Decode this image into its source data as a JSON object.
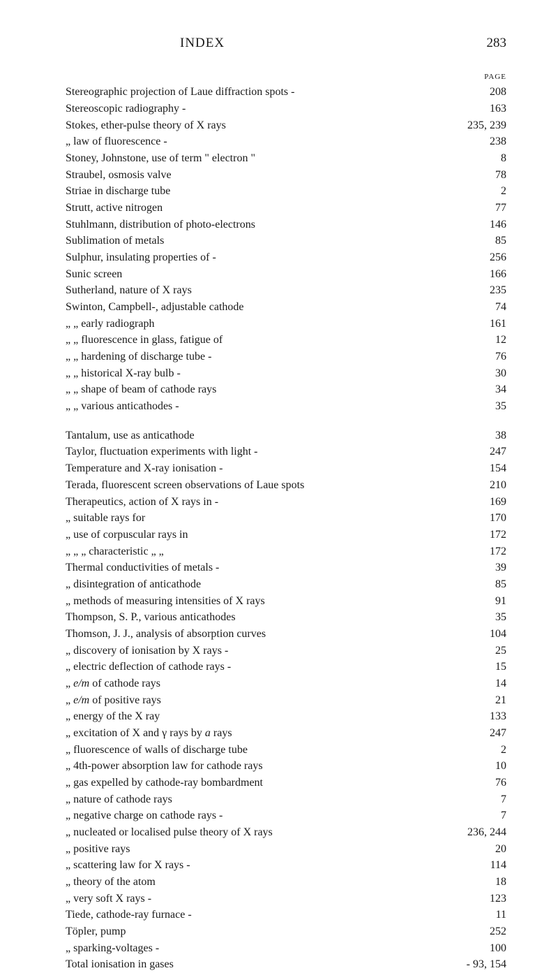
{
  "header": {
    "title": "INDEX",
    "page_number": "283",
    "page_label": "PAGE"
  },
  "entries": [
    {
      "text": "Stereographic projection of Laue diffraction spots -",
      "page": "208",
      "indent": 0
    },
    {
      "text": "Stereoscopic radiography -",
      "page": "163",
      "indent": 0
    },
    {
      "text": "Stokes, ether-pulse theory of X rays",
      "page": "235, 239",
      "indent": 0
    },
    {
      "text": "„    law of fluorescence -",
      "page": "238",
      "indent": 1
    },
    {
      "text": "Stoney, Johnstone, use of term \" electron \"",
      "page": "8",
      "indent": 0
    },
    {
      "text": "Straubel, osmosis valve",
      "page": "78",
      "indent": 0
    },
    {
      "text": "Striae in discharge tube",
      "page": "2",
      "indent": 0
    },
    {
      "text": "Strutt, active nitrogen",
      "page": "77",
      "indent": 0
    },
    {
      "text": "Stuhlmann, distribution of photo-electrons",
      "page": "146",
      "indent": 0
    },
    {
      "text": "Sublimation of metals",
      "page": "85",
      "indent": 0
    },
    {
      "text": "Sulphur, insulating properties of -",
      "page": "256",
      "indent": 0
    },
    {
      "text": "Sunic screen",
      "page": "166",
      "indent": 0
    },
    {
      "text": "Sutherland, nature of X rays",
      "page": "235",
      "indent": 0
    },
    {
      "text": "Swinton, Campbell-, adjustable cathode",
      "page": "74",
      "indent": 0
    },
    {
      "text": "„           „      early radiograph",
      "page": "161",
      "indent": 1
    },
    {
      "text": "„           „      fluorescence in glass, fatigue of",
      "page": "12",
      "indent": 1
    },
    {
      "text": "„           „      hardening of discharge tube -",
      "page": "76",
      "indent": 1
    },
    {
      "text": "„           „      historical X-ray bulb -",
      "page": "30",
      "indent": 1
    },
    {
      "text": "„           „      shape of beam of cathode rays",
      "page": "34",
      "indent": 1
    },
    {
      "text": "„           „      various anticathodes -",
      "page": "35",
      "indent": 1
    }
  ],
  "entries2": [
    {
      "text": "Tantalum, use as anticathode",
      "page": "38",
      "indent": 0,
      "bold_prefix": "Tantalum,"
    },
    {
      "text": "Taylor, fluctuation experiments with light -",
      "page": "247",
      "indent": 0
    },
    {
      "text": "Temperature and X-ray ionisation -",
      "page": "154",
      "indent": 0
    },
    {
      "text": "Terada, fluorescent screen observations of Laue spots",
      "page": "210",
      "indent": 0
    },
    {
      "text": "Therapeutics, action of X rays in -",
      "page": "169",
      "indent": 0
    },
    {
      "text": "„        suitable rays for",
      "page": "170",
      "indent": 1
    },
    {
      "text": "„        use of corpuscular rays in",
      "page": "172",
      "indent": 1
    },
    {
      "text": "„        „  „  characteristic „  „",
      "page": "172",
      "indent": 1
    },
    {
      "text": "Thermal conductivities of metals -",
      "page": "39",
      "indent": 0
    },
    {
      "text": "„     disintegration of anticathode",
      "page": "85",
      "indent": 1
    },
    {
      "text": "„     methods of measuring intensities of X rays",
      "page": "91",
      "indent": 1
    },
    {
      "text": "Thompson, S. P., various anticathodes",
      "page": "35",
      "indent": 0
    },
    {
      "text": "Thomson, J. J., analysis of absorption curves",
      "page": "104",
      "indent": 0
    },
    {
      "text": "„        discovery of ionisation by X rays -",
      "page": "25",
      "indent": 1
    },
    {
      "text": "„        electric deflection of cathode rays -",
      "page": "15",
      "indent": 1
    },
    {
      "text_parts": [
        "„        ",
        {
          "italic": true,
          "text": "e/m"
        },
        " of cathode rays"
      ],
      "page": "14",
      "indent": 1
    },
    {
      "text_parts": [
        "„        ",
        {
          "italic": true,
          "text": "e/m"
        },
        " of positive rays"
      ],
      "page": "21",
      "indent": 1
    },
    {
      "text": "„        energy of the X ray",
      "page": "133",
      "indent": 1
    },
    {
      "text_parts": [
        "„        excitation of X and γ rays by ",
        {
          "italic": true,
          "text": "a"
        },
        " rays"
      ],
      "page": "247",
      "indent": 1
    },
    {
      "text": "„        fluorescence of walls of discharge tube",
      "page": "2",
      "indent": 1
    },
    {
      "text": "„        4th-power absorption law for cathode rays",
      "page": "10",
      "indent": 1
    },
    {
      "text": "„        gas expelled by cathode-ray bombardment",
      "page": "76",
      "indent": 1
    },
    {
      "text": "„        nature of cathode rays",
      "page": "7",
      "indent": 1
    },
    {
      "text": "„        negative charge on cathode rays -",
      "page": "7",
      "indent": 1
    },
    {
      "text": "„        nucleated or localised pulse theory of X rays",
      "page": "236, 244",
      "indent": 1
    },
    {
      "text": "„        positive rays",
      "page": "20",
      "indent": 1
    },
    {
      "text": "„        scattering law for X rays -",
      "page": "114",
      "indent": 1
    },
    {
      "text": "„        theory of the atom",
      "page": "18",
      "indent": 1
    },
    {
      "text": "„        very soft X rays -",
      "page": "123",
      "indent": 1
    },
    {
      "text": "Tiede, cathode-ray furnace -",
      "page": "11",
      "indent": 0
    },
    {
      "text": "Töpler, pump",
      "page": "252",
      "indent": 0
    },
    {
      "text": "„    sparking-voltages -",
      "page": "100",
      "indent": 1
    },
    {
      "text": "Total ionisation in gases",
      "page": "- 93, 154",
      "indent": 0
    }
  ]
}
